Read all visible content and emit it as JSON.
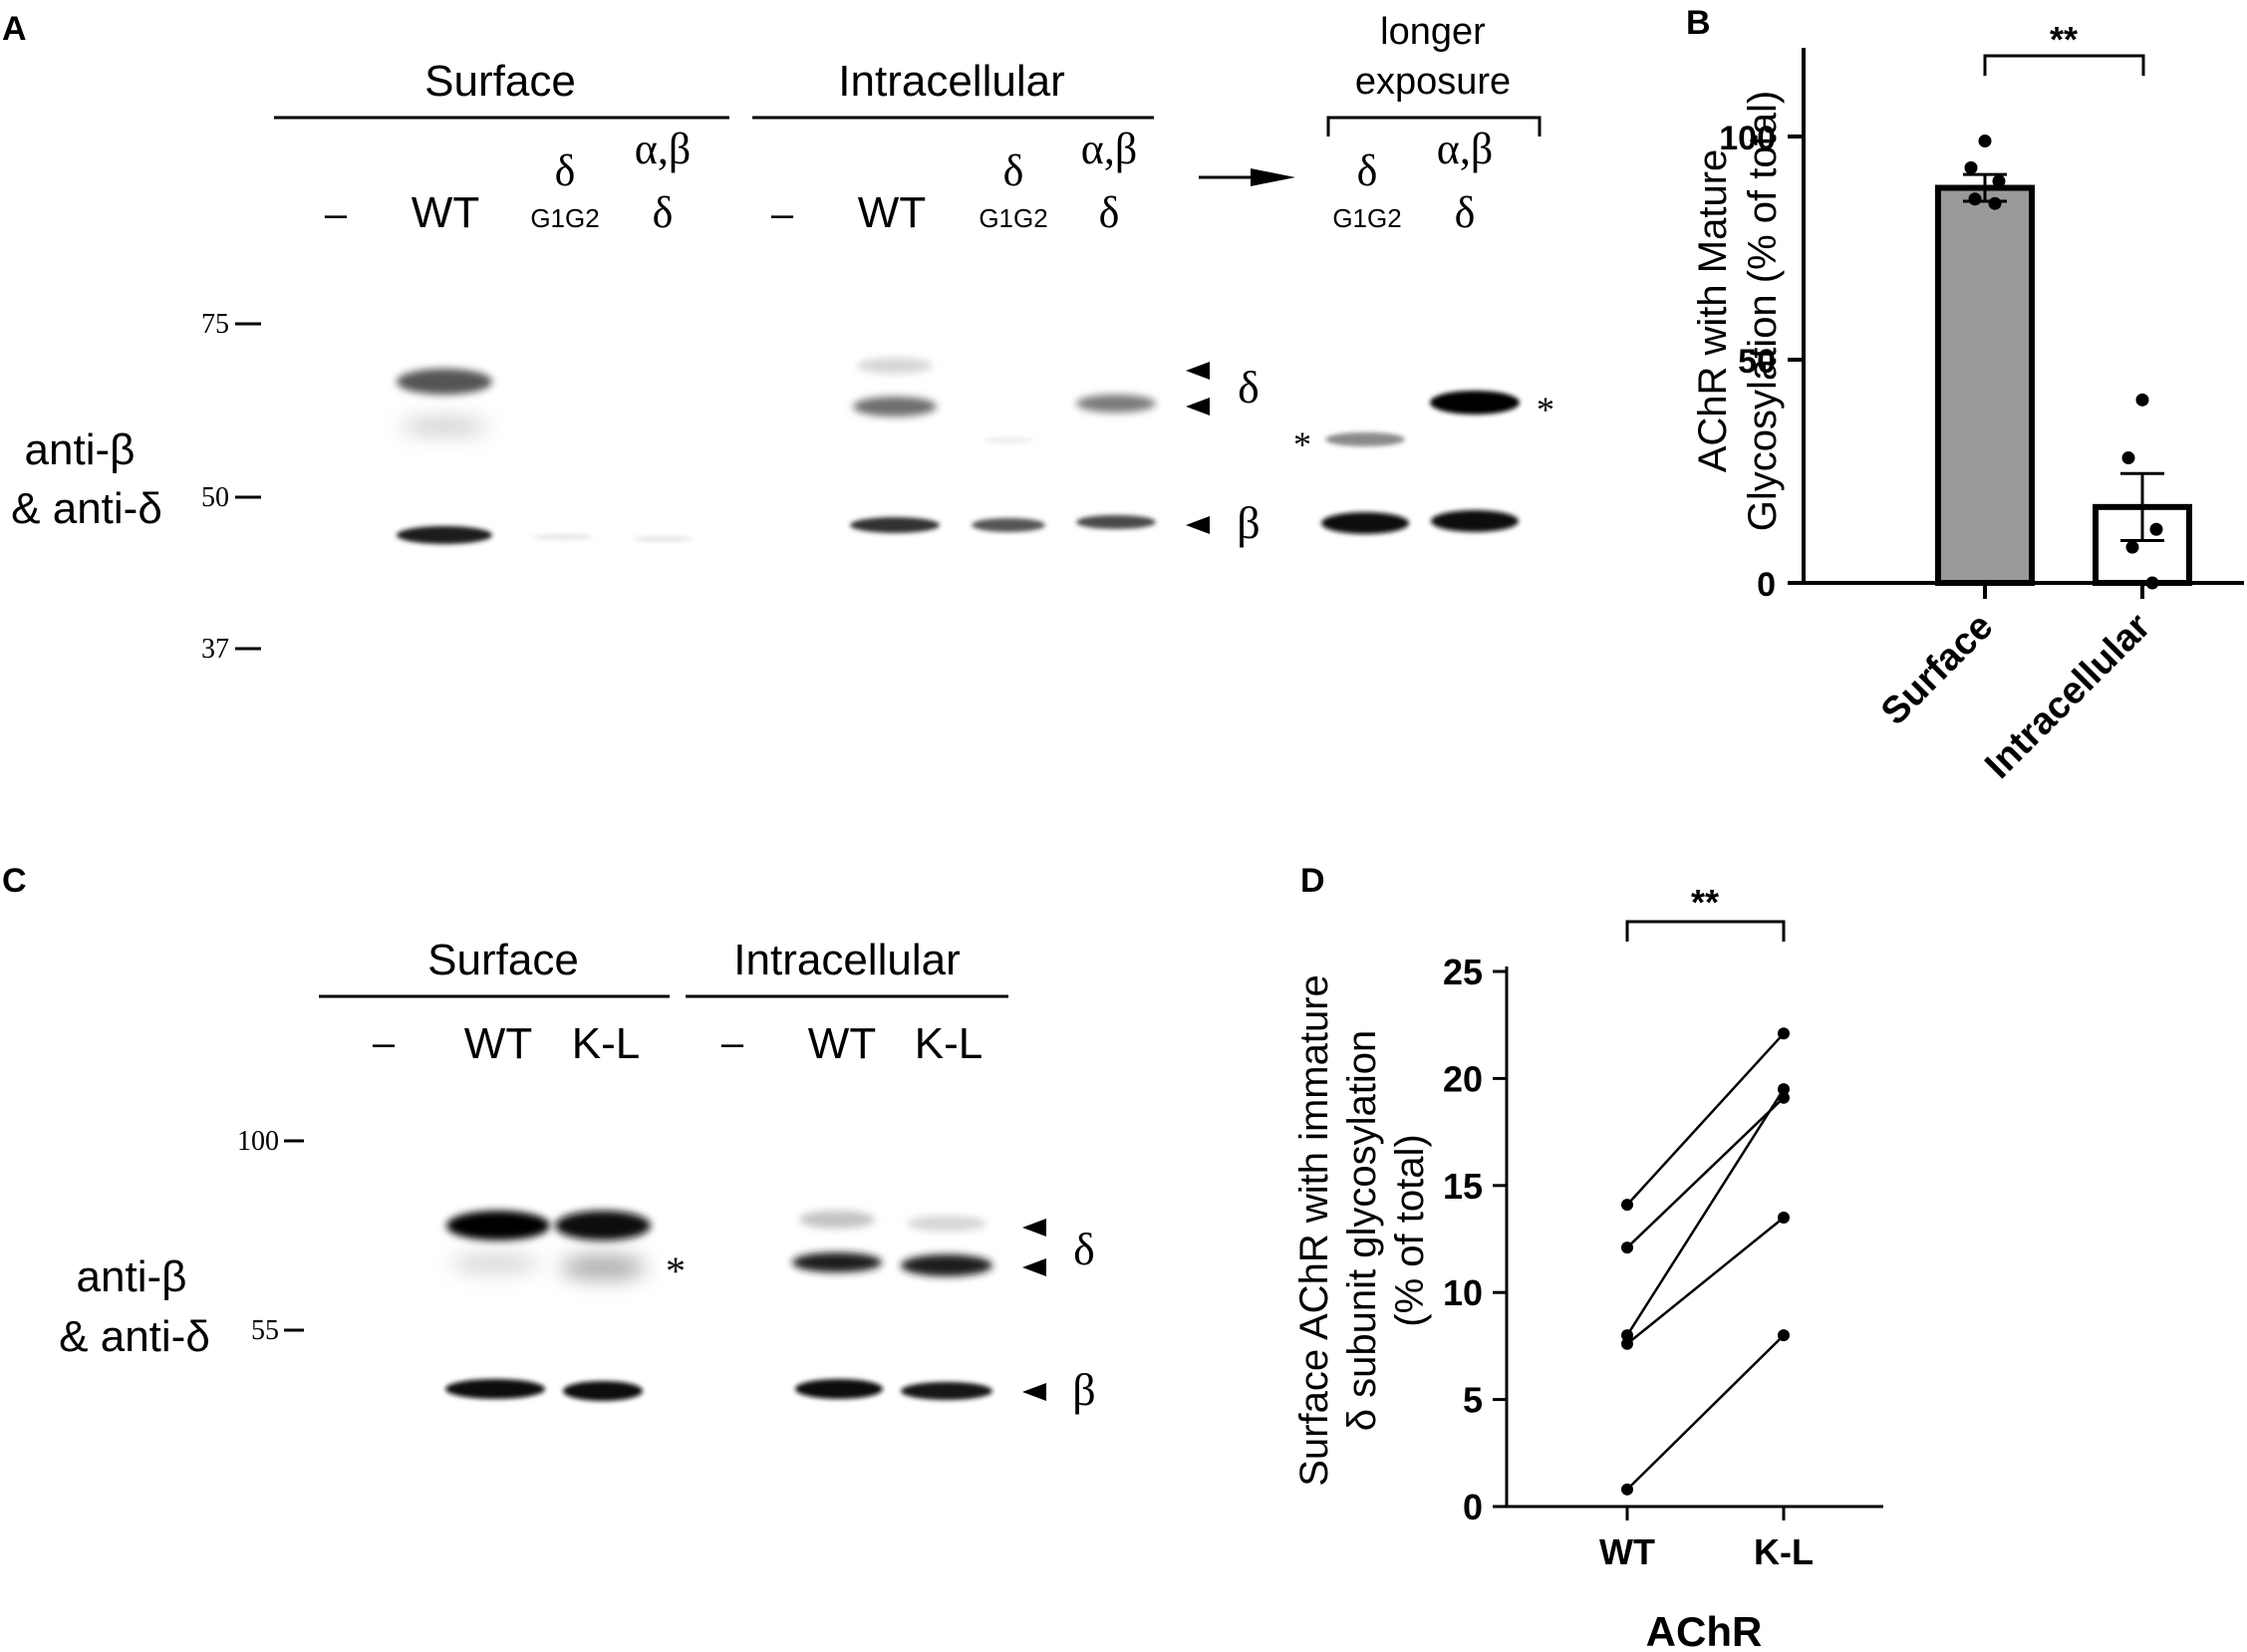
{
  "panels": {
    "a": "A",
    "b": "B",
    "c": "C",
    "d": "D"
  },
  "blot_a": {
    "group_surface": "Surface",
    "group_intracellular": "Intracellular",
    "longer_exposure_line1": "longer",
    "longer_exposure_line2": "exposure",
    "lanes": {
      "neg": "–",
      "wt": "WT",
      "delta": "δ",
      "g1g2": "G1G2",
      "ab": "α,β",
      "d": "δ"
    },
    "markers": [
      "75",
      "50",
      "37"
    ],
    "row_label_line1": "anti-β",
    "row_label_line2": "& anti-δ",
    "band_delta": "δ",
    "band_beta": "β",
    "asterisk": "*"
  },
  "blot_c": {
    "group_surface": "Surface",
    "group_intracellular": "Intracellular",
    "lanes": {
      "neg": "–",
      "wt": "WT",
      "kl": "K-L"
    },
    "markers": [
      "100",
      "55"
    ],
    "row_label_line1": "anti-β",
    "row_label_line2": "& anti-δ",
    "band_delta": "δ",
    "band_beta": "β",
    "asterisk": "*"
  },
  "chart_data": [
    {
      "panel": "B",
      "type": "bar",
      "categories": [
        "Surface",
        "Intracellular"
      ],
      "values": [
        88.5,
        17
      ],
      "sem": [
        3,
        7.5
      ],
      "points": [
        [
          99,
          93,
          90,
          86,
          85
        ],
        [
          41,
          28,
          12,
          8,
          0
        ]
      ],
      "bar_colors": [
        "#999999",
        "#ffffff"
      ],
      "ylabel_line1": "AChR with Mature",
      "ylabel_line2": "Glycosylation (% of total)",
      "yticks": [
        0,
        50,
        100
      ],
      "ylim": [
        0,
        120
      ],
      "significance": "**"
    },
    {
      "panel": "D",
      "type": "line",
      "categories": [
        "WT",
        "K-L"
      ],
      "pairs": [
        [
          14.1,
          22.1
        ],
        [
          12.1,
          19.1
        ],
        [
          8.0,
          19.5
        ],
        [
          7.6,
          13.5
        ],
        [
          0.8,
          8.0
        ]
      ],
      "ylabel_line1": "Surface AChR with immature",
      "ylabel_line2": "δ subunit glycosylation",
      "ylabel_line3": "(% of total)",
      "xlabel": "AChR",
      "yticks": [
        0,
        5,
        10,
        15,
        20,
        25
      ],
      "ylim": [
        0,
        25
      ],
      "significance": "**"
    }
  ]
}
